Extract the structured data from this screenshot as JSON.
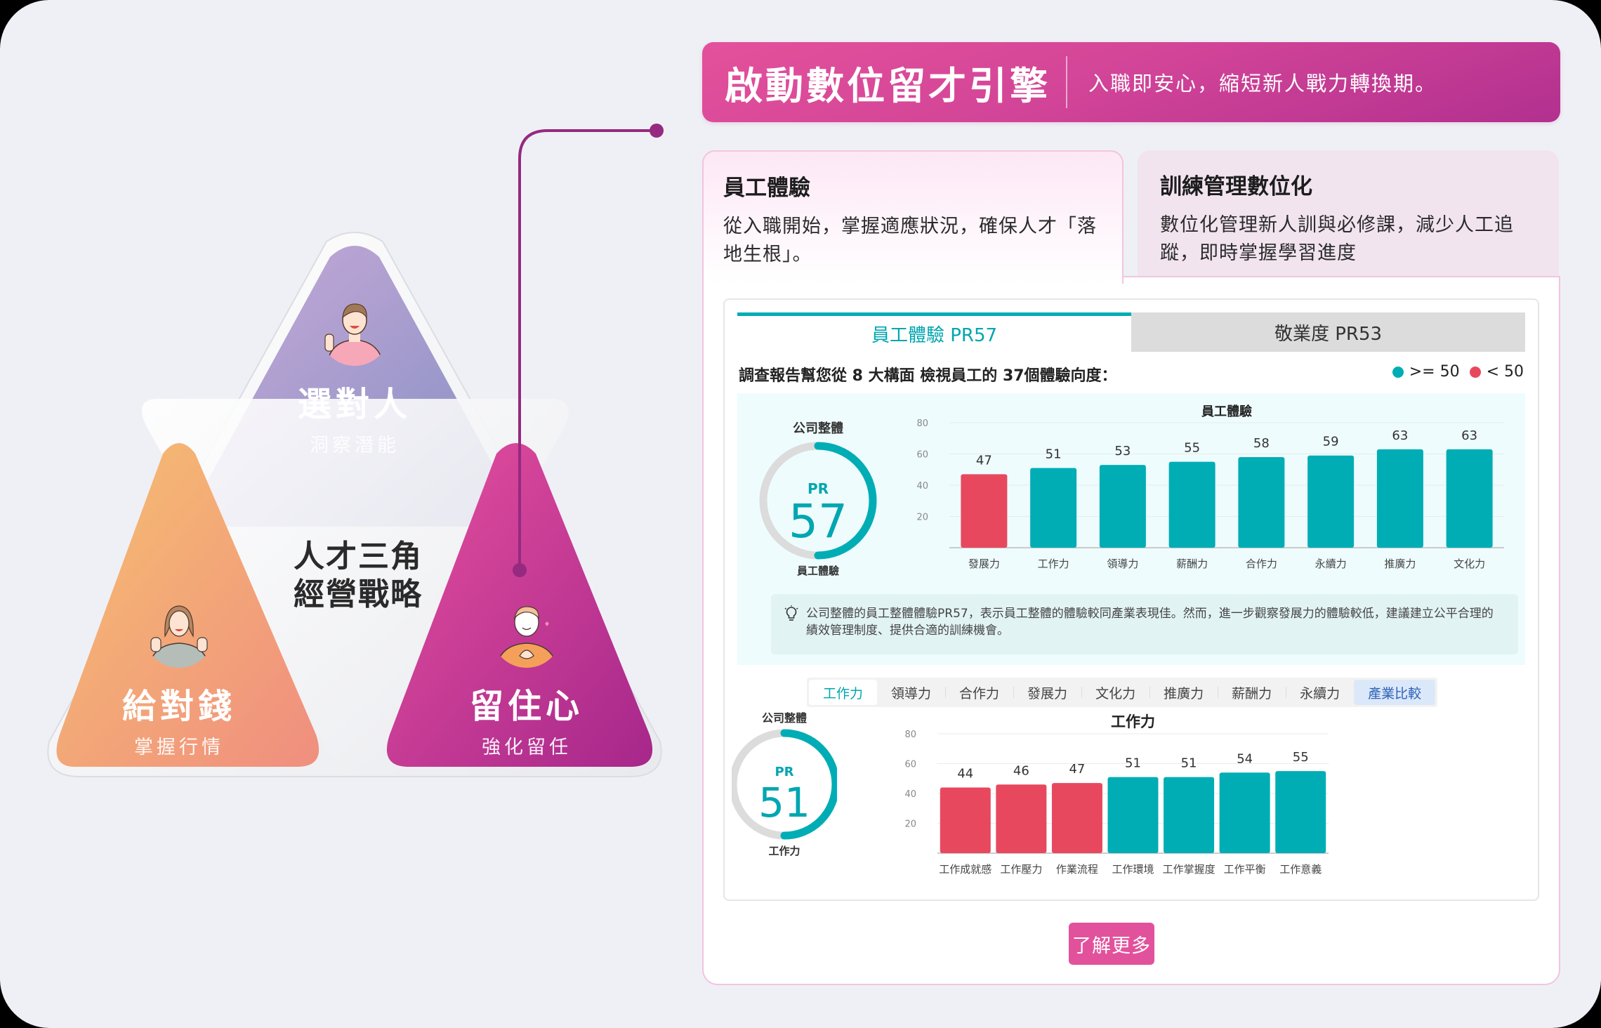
{
  "triangle": {
    "center_line1": "人才三角",
    "center_line2": "經營戰略",
    "top": {
      "title": "選對人",
      "subtitle": "洞察潛能",
      "gradient": [
        "#c6a8d8",
        "#8891c4"
      ]
    },
    "left": {
      "title": "給對錢",
      "subtitle": "掌握行情",
      "gradient": [
        "#f5bd72",
        "#f08f7e"
      ]
    },
    "right": {
      "title": "留住心",
      "subtitle": "強化留任",
      "gradient": [
        "#e24f9d",
        "#a8288c"
      ]
    }
  },
  "banner": {
    "title": "啟動數位留才引擎",
    "subtitle": "入職即安心，縮短新人戰力轉換期。"
  },
  "cards": [
    {
      "title": "員工體驗",
      "description": "從入職開始，掌握適應狀況，確保人才「落地生根」。",
      "active": true
    },
    {
      "title": "訓練管理數位化",
      "description": "數位化管理新人訓與必修課，減少人工追蹤，即時掌握學習進度",
      "active": false
    }
  ],
  "report": {
    "tabs": [
      {
        "label": "員工體驗 PR57",
        "active": true
      },
      {
        "label": "敬業度 PR53",
        "active": false
      }
    ],
    "intro": "調查報告幫您從 8 大構面 檢視員工的 37個體驗向度：",
    "legend": [
      {
        "label": ">= 50",
        "color": "#00adb5"
      },
      {
        "label": "< 50",
        "color": "#e8485e"
      }
    ],
    "overall_ring": {
      "top_label": "公司整體",
      "pr_label": "PR",
      "value": "57",
      "bottom_label": "員工體驗"
    },
    "insight": "公司整體的員工整體體驗PR57，表示員工整體的體驗較同產業表現佳。然而，進一步觀察發展力的體驗較低，建議建立公平合理的績效管理制度、提供合適的訓練機會。",
    "segment_tabs": [
      "工作力",
      "領導力",
      "合作力",
      "發展力",
      "文化力",
      "推廣力",
      "薪酬力",
      "永續力",
      "產業比較"
    ],
    "segment_active": "工作力",
    "detail_ring": {
      "top_label": "公司整體",
      "pr_label": "PR",
      "value": "51",
      "bottom_label": "工作力"
    }
  },
  "colors": {
    "teal": "#00adb5",
    "red": "#e8485e",
    "pink_accent": "#e2529c",
    "connector": "#952a80"
  },
  "more_button": "了解更多",
  "chart_data": [
    {
      "type": "bar",
      "title": "員工體驗",
      "categories": [
        "發展力",
        "工作力",
        "領導力",
        "薪酬力",
        "合作力",
        "永續力",
        "推廣力",
        "文化力"
      ],
      "values": [
        47,
        51,
        53,
        55,
        58,
        59,
        63,
        63
      ],
      "colors": [
        "#e8485e",
        "#00adb5",
        "#00adb5",
        "#00adb5",
        "#00adb5",
        "#00adb5",
        "#00adb5",
        "#00adb5"
      ],
      "yticks": [
        20,
        40,
        60,
        80
      ],
      "ylim": [
        0,
        80
      ],
      "xlabel": "",
      "ylabel": "",
      "grid": true,
      "threshold": 50
    },
    {
      "type": "bar",
      "title": "工作力",
      "categories": [
        "工作成就感",
        "工作壓力",
        "作業流程",
        "工作環境",
        "工作掌握度",
        "工作平衡",
        "工作意義"
      ],
      "values": [
        44,
        46,
        47,
        51,
        51,
        54,
        55
      ],
      "colors": [
        "#e8485e",
        "#e8485e",
        "#e8485e",
        "#00adb5",
        "#00adb5",
        "#00adb5",
        "#00adb5"
      ],
      "yticks": [
        20,
        40,
        60,
        80
      ],
      "ylim": [
        0,
        80
      ],
      "xlabel": "",
      "ylabel": "",
      "grid": true,
      "threshold": 50
    }
  ]
}
